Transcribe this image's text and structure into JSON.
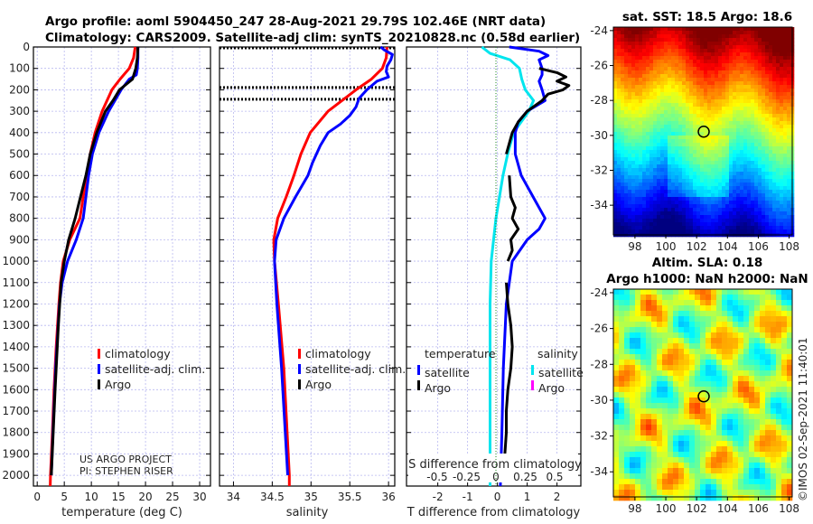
{
  "title": {
    "line1": "Argo profile: aoml 5904450_247 28-Aug-2021 29.79S 102.46E (NRT data)",
    "line2": "Climatology: CARS2009. Satellite-adj clim: synTS_20210828.nc (0.58d earlier)"
  },
  "copyright": "©IMOS 02-Sep-2021 11:40:01",
  "project": {
    "line1": "US ARGO PROJECT",
    "line2": "PI: STEPHEN RISER"
  },
  "chart_data": [
    {
      "type": "line",
      "name": "temperature-profile",
      "xlabel": "temperature (deg C)",
      "xlim": [
        -0.7,
        32
      ],
      "ylim": [
        2050,
        0
      ],
      "xticks": [
        0,
        5,
        10,
        15,
        20,
        25,
        30
      ],
      "yticks": [
        0,
        100,
        200,
        300,
        400,
        500,
        600,
        700,
        800,
        900,
        1000,
        1100,
        1200,
        1300,
        1400,
        1500,
        1600,
        1700,
        1800,
        1900,
        2000
      ],
      "legend": [
        "climatology",
        "satellite-adj. clim.",
        "Argo"
      ],
      "series": [
        {
          "name": "climatology",
          "color": "#ff0000",
          "depth": [
            0,
            50,
            100,
            150,
            200,
            300,
            400,
            500,
            600,
            700,
            800,
            900,
            1000,
            1100,
            1200,
            1400,
            1600,
            1800,
            2000,
            2050
          ],
          "values": [
            18.1,
            17.8,
            17.0,
            15.3,
            13.8,
            12.0,
            10.7,
            9.8,
            9.1,
            8.5,
            7.9,
            6.0,
            4.8,
            4.3,
            4.0,
            3.5,
            3.1,
            2.8,
            2.45,
            2.4
          ]
        },
        {
          "name": "satellite-adj. clim.",
          "color": "#0000ff",
          "depth": [
            0,
            50,
            100,
            130,
            150,
            200,
            300,
            400,
            500,
            600,
            700,
            800,
            900,
            1000,
            1100,
            1200,
            1500,
            1800,
            2000
          ],
          "values": [
            18.6,
            18.6,
            18.5,
            18.3,
            17.0,
            15.5,
            13.2,
            11.4,
            10.2,
            9.5,
            9.0,
            8.5,
            7.2,
            5.6,
            4.6,
            4.1,
            3.4,
            2.9,
            2.6
          ]
        },
        {
          "name": "Argo",
          "color": "#000000",
          "depth": [
            0,
            50,
            100,
            150,
            200,
            250,
            300,
            400,
            500,
            600,
            700,
            800,
            900,
            1000,
            1100,
            1300,
            1600,
            2000
          ],
          "values": [
            18.6,
            18.5,
            18.2,
            17.6,
            15.2,
            14.0,
            12.6,
            11.0,
            9.8,
            9.0,
            8.0,
            7.0,
            5.8,
            5.0,
            4.4,
            3.9,
            3.3,
            2.6
          ]
        }
      ]
    },
    {
      "type": "line",
      "name": "salinity-profile",
      "xlabel": "salinity",
      "xlim": [
        33.82,
        36.08
      ],
      "ylim": [
        2050,
        0
      ],
      "xticks": [
        34,
        34.5,
        35,
        35.5,
        36
      ],
      "xticklabels": [
        "34",
        "34.5",
        "35",
        "35.5",
        "36"
      ],
      "legend": [
        "climatology",
        "satellite-adj. clim.",
        "Argo"
      ],
      "reference_depths": [
        0,
        185,
        240
      ],
      "series": [
        {
          "name": "climatology",
          "color": "#ff0000",
          "depth": [
            0,
            50,
            100,
            150,
            200,
            250,
            300,
            400,
            500,
            600,
            700,
            800,
            900,
            1000,
            1200,
            1500,
            2000,
            2050
          ],
          "values": [
            35.98,
            35.97,
            35.92,
            35.78,
            35.58,
            35.4,
            35.22,
            34.99,
            34.87,
            34.78,
            34.68,
            34.57,
            34.52,
            34.53,
            34.58,
            34.65,
            34.72,
            34.72
          ]
        },
        {
          "name": "satellite-adj. clim.",
          "color": "#0000ff",
          "depth": [
            0,
            15,
            35,
            60,
            90,
            115,
            140,
            160,
            200,
            240,
            280,
            320,
            360,
            400,
            460,
            540,
            600,
            700,
            800,
            900,
            1000,
            1200,
            1500,
            2000
          ],
          "values": [
            35.9,
            35.95,
            36.05,
            36.03,
            35.98,
            35.97,
            36.0,
            35.85,
            35.72,
            35.62,
            35.58,
            35.5,
            35.38,
            35.22,
            35.12,
            35.02,
            34.96,
            34.8,
            34.65,
            34.55,
            34.53,
            34.56,
            34.62,
            34.7
          ]
        }
      ]
    },
    {
      "type": "line",
      "name": "difference-profile",
      "xlabel": "T difference from climatology",
      "x2label": "S difference from climatology",
      "xlim": [
        -3.05,
        2.8
      ],
      "ylim": [
        2050,
        0
      ],
      "xticks": [
        -2,
        -1,
        0,
        1,
        2
      ],
      "x2ticks": [
        -0.5,
        -0.25,
        0,
        0.25,
        0.5
      ],
      "x2ticklabels": [
        "-0.5",
        "-0.25",
        "0",
        "0.25",
        "0.5"
      ],
      "legend": {
        "temperature_title": "temperature",
        "salinity_title": "salinity",
        "t_satellite": "satellite",
        "t_argo": "Argo",
        "s_satellite": "satellite",
        "s_argo": "Argo"
      },
      "series": [
        {
          "name": "S satellite",
          "axis": "S",
          "color": "#00e5ee",
          "depth": [
            0,
            30,
            60,
            100,
            150,
            200,
            250,
            300,
            400,
            500,
            600,
            700,
            800,
            900,
            1000,
            1200,
            1500,
            2000,
            2050
          ],
          "values": [
            -0.12,
            -0.05,
            0.12,
            0.2,
            0.22,
            0.25,
            0.32,
            0.28,
            0.15,
            0.1,
            0.06,
            0.03,
            0.0,
            -0.02,
            -0.04,
            -0.05,
            -0.05,
            -0.05,
            -0.05
          ]
        },
        {
          "name": "T satellite",
          "axis": "T",
          "color": "#0000ff",
          "depth": [
            0,
            20,
            40,
            60,
            100,
            130,
            160,
            200,
            250,
            300,
            350,
            400,
            500,
            600,
            700,
            800,
            850,
            900,
            1000,
            1100,
            1200,
            1500,
            1800,
            2050
          ],
          "values": [
            0.4,
            1.4,
            1.7,
            1.4,
            1.5,
            1.5,
            1.4,
            1.5,
            1.6,
            1.0,
            0.7,
            0.6,
            0.6,
            0.8,
            1.2,
            1.6,
            1.4,
            1.0,
            0.5,
            0.4,
            0.3,
            0.2,
            0.15,
            0.1
          ]
        },
        {
          "name": "T Argo",
          "axis": "T",
          "color": "#000000",
          "depth": [
            100,
            120,
            140,
            160,
            180,
            200,
            220,
            250,
            300,
            350,
            400,
            450,
            500,
            null,
            600,
            700,
            750,
            800,
            850,
            900,
            950,
            1000,
            null,
            1100,
            1200,
            1300,
            1400,
            1500,
            1600,
            1700,
            1800,
            1900,
            2000
          ],
          "values": [
            1.4,
            2.0,
            2.3,
            2.0,
            2.4,
            2.2,
            1.7,
            1.5,
            1.0,
            0.7,
            0.5,
            0.4,
            0.3,
            null,
            0.4,
            0.45,
            0.6,
            0.5,
            0.7,
            0.45,
            0.5,
            0.35,
            null,
            0.3,
            0.35,
            0.45,
            0.5,
            0.45,
            0.35,
            0.3,
            0.3,
            0.25,
            0.2
          ]
        }
      ]
    },
    {
      "type": "heatmap",
      "name": "sst-map",
      "title": "sat. SST: 18.5 Argo: 18.6",
      "xlim": [
        96.6,
        108.2
      ],
      "ylim": [
        -35.7,
        -23.8
      ],
      "xticks": [
        98,
        100,
        102,
        104,
        106,
        108
      ],
      "yticks": [
        -24,
        -26,
        -28,
        -30,
        -32,
        -34
      ],
      "marker": [
        102.46,
        -29.79
      ]
    },
    {
      "type": "heatmap",
      "name": "sla-map",
      "title": "Altim. SLA: 0.18",
      "subtitle": "Argo h1000: NaN h2000: NaN",
      "xlim": [
        96.6,
        108.2
      ],
      "ylim": [
        -35.4,
        -23.8
      ],
      "xticks": [
        98,
        100,
        102,
        104,
        106,
        108
      ],
      "yticks": [
        -24,
        -26,
        -28,
        -30,
        -32,
        -34
      ],
      "marker": [
        102.46,
        -29.79
      ]
    }
  ],
  "colors": {
    "grid": "#b8b8f0",
    "axis": "#000000"
  }
}
